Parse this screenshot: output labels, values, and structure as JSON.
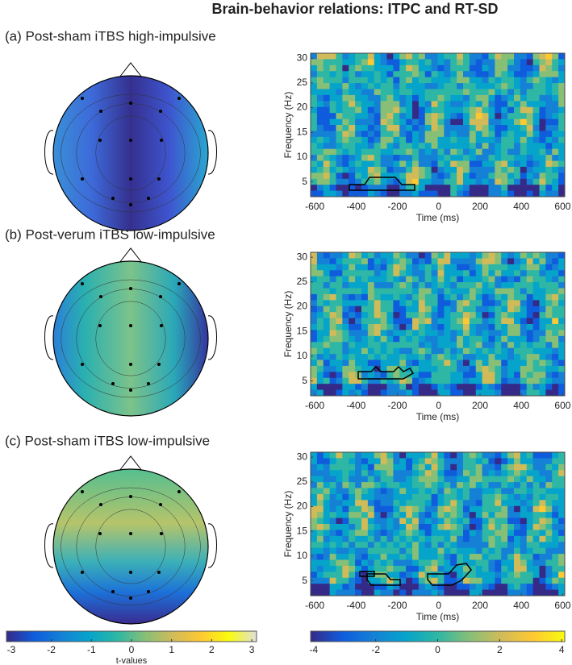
{
  "title": "Brain-behavior relations: ITPC and RT-SD",
  "chart_data": [
    {
      "type": "heatmap",
      "title": "(a)  Post-sham iTBS high-impulsive",
      "x_label": "Time (ms)",
      "y_label": "Frequency (Hz)",
      "xlim": [
        -620,
        610
      ],
      "xticks": [
        -600,
        -400,
        -200,
        0,
        200,
        400,
        600
      ],
      "ylim": [
        2,
        31
      ],
      "yticks": [
        5,
        10,
        15,
        20,
        25,
        30
      ]
    },
    {
      "type": "heatmap",
      "title": "(b)  Post-verum iTBS low-impulsive",
      "x_label": "Time (ms)",
      "y_label": "Frequency (Hz)",
      "xlim": [
        -620,
        610
      ],
      "xticks": [
        -600,
        -400,
        -200,
        0,
        200,
        400,
        600
      ],
      "ylim": [
        2,
        31
      ],
      "yticks": [
        5,
        10,
        15,
        20,
        25,
        30
      ]
    },
    {
      "type": "heatmap",
      "title": "(c)  Post-sham iTBS low-impulsive",
      "x_label": "Time (ms)",
      "y_label": "Frequency (Hz)",
      "xlim": [
        -620,
        610
      ],
      "xticks": [
        -600,
        -400,
        -200,
        0,
        200,
        400,
        600
      ],
      "ylim": [
        2,
        31
      ],
      "yticks": [
        5,
        10,
        15,
        20,
        25,
        30
      ]
    },
    {
      "type": "colorbar",
      "x_label": "t-values",
      "xlim": [
        -3.12,
        3.12
      ],
      "xticks": [
        -3,
        -2,
        -1,
        0,
        1,
        2,
        3
      ],
      "colors": [
        "#352a87",
        "#0f5cdd",
        "#1481d6",
        "#06a4ca",
        "#2eb7a4",
        "#87bf77",
        "#d1bb59",
        "#fec832",
        "#f9fb0e",
        "#e0e0d8"
      ]
    },
    {
      "type": "colorbar",
      "xlim": [
        -4.1,
        4.1
      ],
      "xticks": [
        -4,
        -2,
        0,
        2,
        4
      ],
      "colors": [
        "#352a87",
        "#0f5cdd",
        "#1481d6",
        "#06a4ca",
        "#2eb7a4",
        "#87bf77",
        "#d1bb59",
        "#fec832",
        "#f9fb0e"
      ]
    }
  ]
}
